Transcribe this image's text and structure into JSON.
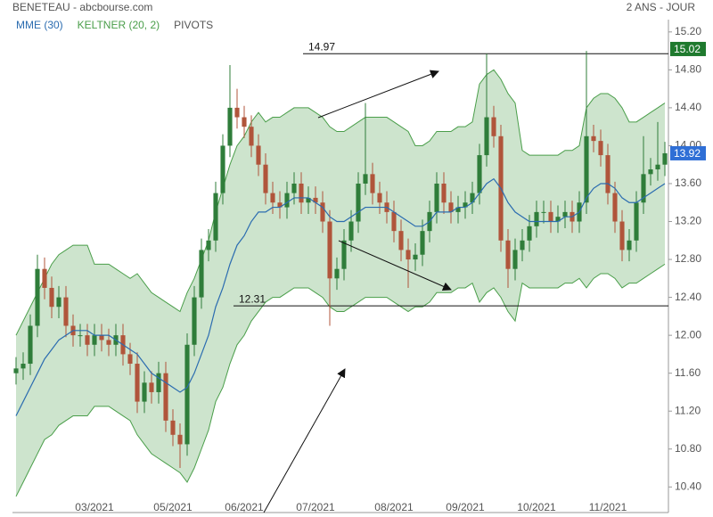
{
  "chart_data": {
    "type": "candlestick",
    "title": "BENETEAU - abcbourse.com",
    "subtitle": "2 ANS - JOUR",
    "categories": [
      null,
      null,
      null,
      null,
      null,
      null,
      null,
      null,
      null,
      null,
      null,
      "03/2021",
      null,
      null,
      null,
      null,
      null,
      null,
      null,
      null,
      null,
      null,
      "05/2021",
      null,
      null,
      null,
      null,
      null,
      null,
      null,
      null,
      null,
      "06/2021",
      null,
      null,
      null,
      null,
      null,
      null,
      null,
      null,
      null,
      "07/2021",
      null,
      null,
      null,
      null,
      null,
      null,
      null,
      null,
      null,
      null,
      "08/2021",
      null,
      null,
      null,
      null,
      null,
      null,
      null,
      null,
      null,
      "09/2021",
      null,
      null,
      null,
      null,
      null,
      null,
      null,
      null,
      null,
      "10/2021",
      null,
      null,
      null,
      null,
      null,
      null,
      null,
      null,
      null,
      "11/2021",
      null,
      null,
      null,
      null,
      null,
      null,
      null,
      null
    ],
    "open": [
      11.6,
      11.65,
      11.7,
      12.1,
      12.7,
      12.5,
      12.3,
      12.4,
      12.1,
      12.0,
      12.0,
      11.9,
      12.0,
      11.95,
      11.9,
      12.0,
      11.8,
      11.7,
      11.3,
      11.5,
      11.4,
      11.6,
      11.1,
      10.95,
      10.85,
      11.9,
      12.4,
      12.9,
      13.0,
      13.5,
      14.0,
      14.4,
      14.3,
      14.2,
      14.0,
      13.8,
      13.5,
      13.4,
      13.35,
      13.5,
      13.6,
      13.4,
      13.45,
      13.4,
      13.2,
      12.6,
      12.7,
      13.0,
      13.2,
      13.6,
      13.7,
      13.5,
      13.4,
      13.3,
      13.1,
      12.9,
      12.8,
      12.85,
      13.1,
      13.3,
      13.6,
      13.4,
      13.3,
      13.35,
      13.4,
      13.5,
      13.9,
      14.3,
      14.1,
      13.0,
      12.7,
      12.9,
      13.0,
      13.15,
      13.3,
      13.3,
      13.2,
      13.25,
      13.3,
      13.2,
      13.4,
      14.1,
      14.05,
      13.9,
      13.5,
      13.2,
      12.9,
      13.0,
      13.4,
      13.7,
      13.75,
      13.8
    ],
    "high": [
      11.77,
      11.82,
      12.22,
      12.85,
      12.82,
      12.62,
      12.52,
      12.52,
      12.22,
      12.12,
      12.12,
      12.12,
      12.12,
      12.07,
      12.12,
      12.12,
      11.92,
      11.82,
      11.62,
      11.62,
      11.72,
      11.72,
      11.22,
      11.07,
      12.02,
      12.52,
      13.02,
      13.12,
      13.62,
      14.12,
      14.85,
      14.6,
      14.42,
      14.32,
      14.12,
      13.92,
      13.62,
      13.52,
      13.62,
      13.72,
      13.72,
      13.57,
      13.57,
      13.52,
      13.32,
      12.82,
      13.12,
      13.32,
      13.72,
      14.45,
      13.82,
      13.62,
      13.52,
      13.42,
      13.22,
      13.02,
      12.97,
      13.22,
      13.42,
      13.72,
      13.72,
      13.52,
      13.47,
      13.52,
      13.62,
      14.02,
      14.97,
      14.42,
      14.22,
      13.12,
      13.02,
      13.12,
      13.27,
      13.42,
      13.42,
      13.42,
      13.37,
      13.42,
      13.42,
      13.52,
      15.0,
      14.22,
      14.17,
      14.02,
      13.62,
      13.32,
      13.12,
      13.52,
      14.1,
      13.87,
      14.25,
      14.04
    ],
    "low": [
      11.48,
      11.53,
      11.58,
      11.98,
      12.38,
      12.18,
      12.18,
      11.98,
      11.88,
      11.88,
      11.78,
      11.78,
      11.83,
      11.78,
      11.78,
      11.68,
      11.58,
      11.18,
      11.18,
      11.28,
      11.28,
      10.98,
      10.83,
      10.6,
      10.73,
      11.78,
      12.28,
      12.78,
      12.88,
      13.38,
      13.88,
      14.18,
      14.08,
      13.88,
      13.68,
      13.38,
      13.28,
      13.23,
      13.23,
      13.38,
      13.28,
      13.28,
      13.28,
      13.08,
      12.1,
      12.48,
      12.58,
      12.88,
      13.08,
      13.48,
      13.38,
      13.28,
      13.18,
      12.98,
      12.78,
      12.5,
      12.68,
      12.73,
      12.98,
      13.18,
      13.28,
      13.18,
      13.18,
      13.23,
      13.28,
      13.38,
      13.78,
      13.98,
      12.88,
      12.5,
      12.58,
      12.78,
      12.88,
      13.03,
      13.18,
      13.08,
      13.08,
      13.13,
      13.08,
      13.08,
      13.28,
      13.93,
      13.78,
      13.38,
      13.08,
      12.78,
      12.78,
      12.88,
      13.28,
      13.58,
      13.63,
      13.68
    ],
    "close": [
      11.65,
      11.7,
      12.1,
      12.7,
      12.5,
      12.3,
      12.4,
      12.1,
      12.0,
      12.0,
      11.9,
      12.0,
      11.95,
      11.9,
      12.0,
      11.8,
      11.7,
      11.3,
      11.5,
      11.4,
      11.6,
      11.1,
      10.95,
      10.85,
      11.9,
      12.4,
      12.9,
      13.0,
      13.5,
      14.0,
      14.4,
      14.3,
      14.2,
      14.0,
      13.8,
      13.5,
      13.4,
      13.35,
      13.5,
      13.6,
      13.4,
      13.45,
      13.4,
      13.2,
      12.6,
      12.7,
      13.0,
      13.2,
      13.6,
      13.7,
      13.5,
      13.4,
      13.3,
      13.1,
      12.9,
      12.8,
      12.85,
      13.1,
      13.3,
      13.6,
      13.4,
      13.3,
      13.35,
      13.4,
      13.5,
      13.9,
      14.3,
      14.1,
      13.0,
      12.7,
      12.9,
      13.0,
      13.15,
      13.3,
      13.3,
      13.2,
      13.25,
      13.3,
      13.2,
      13.4,
      14.1,
      14.05,
      13.9,
      13.5,
      13.2,
      12.9,
      13.0,
      13.4,
      13.7,
      13.75,
      13.8,
      13.92
    ],
    "up_color": "#2f7d3a",
    "down_color": "#b0553b",
    "ylim": [
      10.13,
      15.33
    ],
    "yticks": [
      {
        "value": 10.4,
        "label": "10.40"
      },
      {
        "value": 10.8,
        "label": "10.80"
      },
      {
        "value": 11.2,
        "label": "11.20"
      },
      {
        "value": 11.6,
        "label": "11.60"
      },
      {
        "value": 12.0,
        "label": "12.00"
      },
      {
        "value": 12.4,
        "label": "12.40"
      },
      {
        "value": 12.8,
        "label": "12.80"
      },
      {
        "value": 13.2,
        "label": "13.20"
      },
      {
        "value": 13.6,
        "label": "13.60"
      },
      {
        "value": 14.0,
        "label": "14.00"
      },
      {
        "value": 14.4,
        "label": "14.40"
      },
      {
        "value": 14.8,
        "label": "14.80"
      },
      {
        "value": 15.2,
        "label": "15.20"
      }
    ],
    "mme": {
      "name": "MME (30)",
      "color": "#2b6cb0",
      "values": [
        11.15,
        11.3,
        11.45,
        11.6,
        11.75,
        11.85,
        11.95,
        12.0,
        12.05,
        12.05,
        12.05,
        12.0,
        12.0,
        12.0,
        11.95,
        11.9,
        11.85,
        11.8,
        11.7,
        11.6,
        11.55,
        11.5,
        11.45,
        11.4,
        11.45,
        11.6,
        11.8,
        12.0,
        12.3,
        12.5,
        12.75,
        12.95,
        13.05,
        13.2,
        13.3,
        13.3,
        13.35,
        13.35,
        13.4,
        13.45,
        13.45,
        13.45,
        13.4,
        13.35,
        13.25,
        13.2,
        13.2,
        13.25,
        13.3,
        13.35,
        13.35,
        13.35,
        13.35,
        13.3,
        13.25,
        13.2,
        13.15,
        13.15,
        13.2,
        13.3,
        13.3,
        13.3,
        13.35,
        13.35,
        13.4,
        13.5,
        13.6,
        13.65,
        13.55,
        13.4,
        13.3,
        13.25,
        13.2,
        13.2,
        13.2,
        13.2,
        13.2,
        13.25,
        13.25,
        13.3,
        13.45,
        13.55,
        13.6,
        13.6,
        13.55,
        13.45,
        13.4,
        13.4,
        13.45,
        13.5,
        13.55,
        13.6
      ]
    },
    "keltner": {
      "name": "KELTNER (20, 2)",
      "color": "#4a9e4a",
      "upper": [
        12.0,
        12.15,
        12.3,
        12.45,
        12.6,
        12.75,
        12.85,
        12.9,
        12.95,
        12.95,
        12.95,
        12.75,
        12.75,
        12.75,
        12.7,
        12.65,
        12.6,
        12.65,
        12.55,
        12.45,
        12.4,
        12.35,
        12.3,
        12.25,
        12.45,
        12.6,
        12.8,
        13.0,
        13.3,
        13.55,
        13.8,
        14.0,
        14.1,
        14.25,
        14.35,
        14.25,
        14.3,
        14.3,
        14.35,
        14.4,
        14.4,
        14.4,
        14.35,
        14.3,
        14.2,
        14.15,
        14.15,
        14.2,
        14.25,
        14.3,
        14.3,
        14.3,
        14.3,
        14.25,
        14.2,
        14.15,
        14.0,
        14.0,
        14.05,
        14.15,
        14.15,
        14.15,
        14.2,
        14.2,
        14.25,
        14.65,
        14.75,
        14.8,
        14.7,
        14.55,
        14.45,
        13.95,
        13.9,
        13.9,
        13.9,
        13.9,
        13.9,
        13.95,
        13.95,
        14.0,
        14.4,
        14.5,
        14.55,
        14.55,
        14.5,
        14.4,
        14.25,
        14.25,
        14.3,
        14.35,
        14.4,
        14.45
      ],
      "lower": [
        10.3,
        10.45,
        10.6,
        10.75,
        10.9,
        10.95,
        11.05,
        11.1,
        11.15,
        11.15,
        11.15,
        11.25,
        11.25,
        11.25,
        11.2,
        11.15,
        11.1,
        10.95,
        10.85,
        10.75,
        10.7,
        10.65,
        10.6,
        10.55,
        10.45,
        10.6,
        10.8,
        11.0,
        11.3,
        11.45,
        11.7,
        11.9,
        12.0,
        12.15,
        12.25,
        12.35,
        12.4,
        12.4,
        12.45,
        12.5,
        12.5,
        12.5,
        12.45,
        12.4,
        12.3,
        12.25,
        12.25,
        12.3,
        12.35,
        12.4,
        12.4,
        12.4,
        12.4,
        12.35,
        12.3,
        12.25,
        12.3,
        12.3,
        12.35,
        12.45,
        12.45,
        12.45,
        12.5,
        12.5,
        12.55,
        12.35,
        12.45,
        12.5,
        12.4,
        12.25,
        12.15,
        12.55,
        12.5,
        12.5,
        12.5,
        12.5,
        12.5,
        12.55,
        12.55,
        12.6,
        12.5,
        12.6,
        12.65,
        12.65,
        12.6,
        12.5,
        12.55,
        12.55,
        12.6,
        12.65,
        12.7,
        12.75
      ]
    },
    "pivots": {
      "name": "PIVOTS",
      "color": "#555555",
      "levels": [
        14.97,
        12.31
      ]
    },
    "price_markers": [
      {
        "value": 15.02,
        "color": "#1f7a2e"
      },
      {
        "value": 13.92,
        "color": "#2f6fd6"
      }
    ]
  }
}
